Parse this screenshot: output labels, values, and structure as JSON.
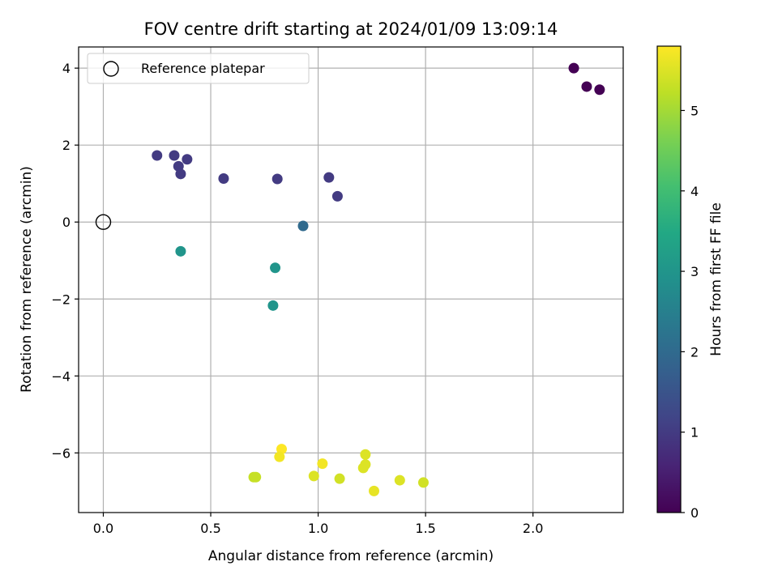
{
  "chart_data": {
    "type": "scatter",
    "title": "FOV centre drift starting at 2024/01/09 13:09:14",
    "xlabel": "Angular distance from reference (arcmin)",
    "ylabel": "Rotation from reference (arcmin)",
    "xlim": [
      -0.115,
      2.42
    ],
    "ylim": [
      -7.55,
      4.55
    ],
    "xticks": [
      0.0,
      0.5,
      1.0,
      1.5,
      2.0
    ],
    "yticks": [
      4,
      2,
      0,
      -2,
      -4,
      -6
    ],
    "grid": true,
    "legend": {
      "position": "top-left",
      "entries": [
        "Reference platepar"
      ]
    },
    "reference_point": {
      "x": 0.0,
      "y": 0.0
    },
    "colorbar": {
      "label": "Hours from first FF file",
      "colormap": "viridis",
      "range": [
        0,
        5.8
      ],
      "ticks": [
        0,
        1,
        2,
        3,
        4,
        5
      ]
    },
    "points": [
      {
        "x": 2.19,
        "y": 4.0,
        "hours": 0.0
      },
      {
        "x": 2.25,
        "y": 3.52,
        "hours": 0.0
      },
      {
        "x": 2.31,
        "y": 3.44,
        "hours": 0.0
      },
      {
        "x": 0.25,
        "y": 1.73,
        "hours": 1.0
      },
      {
        "x": 0.33,
        "y": 1.73,
        "hours": 1.0
      },
      {
        "x": 0.39,
        "y": 1.63,
        "hours": 1.0
      },
      {
        "x": 0.35,
        "y": 1.45,
        "hours": 1.0
      },
      {
        "x": 0.36,
        "y": 1.25,
        "hours": 1.0
      },
      {
        "x": 0.56,
        "y": 1.13,
        "hours": 1.0
      },
      {
        "x": 0.81,
        "y": 1.12,
        "hours": 1.0
      },
      {
        "x": 1.05,
        "y": 1.16,
        "hours": 1.0
      },
      {
        "x": 1.09,
        "y": 0.67,
        "hours": 1.0
      },
      {
        "x": 0.93,
        "y": -0.1,
        "hours": 2.0
      },
      {
        "x": 0.36,
        "y": -0.76,
        "hours": 3.0
      },
      {
        "x": 0.8,
        "y": -1.19,
        "hours": 3.0
      },
      {
        "x": 0.79,
        "y": -2.17,
        "hours": 3.0
      },
      {
        "x": 0.83,
        "y": -5.9,
        "hours": 5.8
      },
      {
        "x": 0.82,
        "y": -6.1,
        "hours": 5.7
      },
      {
        "x": 0.7,
        "y": -6.63,
        "hours": 5.3
      },
      {
        "x": 0.71,
        "y": -6.63,
        "hours": 5.3
      },
      {
        "x": 1.02,
        "y": -6.28,
        "hours": 5.7
      },
      {
        "x": 0.98,
        "y": -6.6,
        "hours": 5.5
      },
      {
        "x": 1.1,
        "y": -6.67,
        "hours": 5.4
      },
      {
        "x": 1.22,
        "y": -6.04,
        "hours": 5.5
      },
      {
        "x": 1.22,
        "y": -6.3,
        "hours": 5.5
      },
      {
        "x": 1.21,
        "y": -6.39,
        "hours": 5.5
      },
      {
        "x": 1.26,
        "y": -6.99,
        "hours": 5.6
      },
      {
        "x": 1.38,
        "y": -6.71,
        "hours": 5.5
      },
      {
        "x": 1.49,
        "y": -6.77,
        "hours": 5.4
      }
    ]
  }
}
